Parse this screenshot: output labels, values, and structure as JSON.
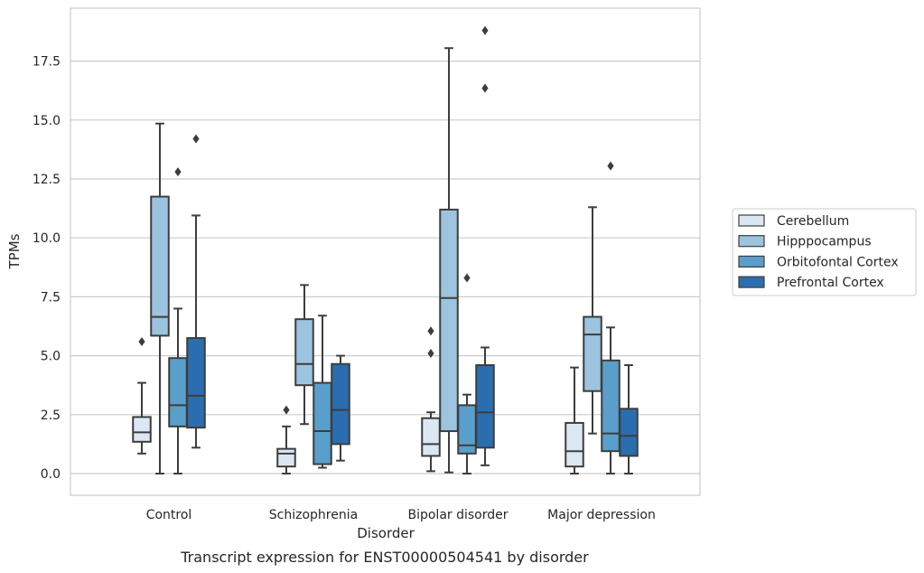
{
  "caption": "Transcript expression for ENST00000504541 by disorder",
  "chart_data": {
    "type": "box",
    "title": "",
    "xlabel": "Disorder",
    "ylabel": "TPMs",
    "ylim": [
      -0.9,
      19.7
    ],
    "yticks": [
      0.0,
      2.5,
      5.0,
      7.5,
      10.0,
      12.5,
      15.0,
      17.5
    ],
    "ytick_labels": [
      "0.0",
      "2.5",
      "5.0",
      "7.5",
      "10.0",
      "12.5",
      "15.0",
      "17.5"
    ],
    "categories": [
      "Control",
      "Schizophrenia",
      "Bipolar disorder",
      "Major depression"
    ],
    "grid": "horizontal",
    "legend_position": "right",
    "series": [
      {
        "name": "Cerebellum",
        "color": "#dbe8f4",
        "boxes": [
          {
            "whisker_low": 0.85,
            "q1": 1.35,
            "median": 1.75,
            "q3": 2.4,
            "whisker_high": 3.85,
            "outliers": [
              5.6
            ]
          },
          {
            "whisker_low": 0.0,
            "q1": 0.3,
            "median": 0.85,
            "q3": 1.05,
            "whisker_high": 2.0,
            "outliers": [
              2.7
            ]
          },
          {
            "whisker_low": 0.1,
            "q1": 0.75,
            "median": 1.25,
            "q3": 2.35,
            "whisker_high": 2.6,
            "outliers": [
              5.1,
              6.05
            ]
          },
          {
            "whisker_low": 0.0,
            "q1": 0.3,
            "median": 0.95,
            "q3": 2.15,
            "whisker_high": 4.5,
            "outliers": []
          }
        ]
      },
      {
        "name": "Hipppocampus",
        "color": "#9cc4de",
        "boxes": [
          {
            "whisker_low": 0.0,
            "q1": 5.85,
            "median": 6.65,
            "q3": 11.75,
            "whisker_high": 14.85,
            "outliers": []
          },
          {
            "whisker_low": 2.1,
            "q1": 3.75,
            "median": 4.65,
            "q3": 6.55,
            "whisker_high": 8.0,
            "outliers": []
          },
          {
            "whisker_low": 0.05,
            "q1": 1.8,
            "median": 7.45,
            "q3": 11.2,
            "whisker_high": 18.05,
            "outliers": []
          },
          {
            "whisker_low": 1.7,
            "q1": 3.5,
            "median": 5.9,
            "q3": 6.65,
            "whisker_high": 11.3,
            "outliers": []
          }
        ]
      },
      {
        "name": "Orbitofontal Cortex",
        "color": "#5a9ecb",
        "boxes": [
          {
            "whisker_low": 0.0,
            "q1": 2.0,
            "median": 2.9,
            "q3": 4.9,
            "whisker_high": 7.0,
            "outliers": [
              12.8
            ]
          },
          {
            "whisker_low": 0.25,
            "q1": 0.4,
            "median": 1.8,
            "q3": 3.85,
            "whisker_high": 6.7,
            "outliers": []
          },
          {
            "whisker_low": 0.0,
            "q1": 0.85,
            "median": 1.2,
            "q3": 2.9,
            "whisker_high": 3.35,
            "outliers": [
              8.3
            ]
          },
          {
            "whisker_low": 0.0,
            "q1": 0.95,
            "median": 1.7,
            "q3": 4.8,
            "whisker_high": 6.2,
            "outliers": [
              13.05
            ]
          }
        ]
      },
      {
        "name": "Prefrontal Cortex",
        "color": "#2b6eaf",
        "boxes": [
          {
            "whisker_low": 1.1,
            "q1": 1.95,
            "median": 3.3,
            "q3": 5.75,
            "whisker_high": 10.95,
            "outliers": [
              14.2
            ]
          },
          {
            "whisker_low": 0.55,
            "q1": 1.25,
            "median": 2.7,
            "q3": 4.65,
            "whisker_high": 5.0,
            "outliers": []
          },
          {
            "whisker_low": 0.35,
            "q1": 1.1,
            "median": 2.6,
            "q3": 4.6,
            "whisker_high": 5.35,
            "outliers": [
              16.35,
              18.8
            ]
          },
          {
            "whisker_low": 0.0,
            "q1": 0.75,
            "median": 1.6,
            "q3": 2.75,
            "whisker_high": 4.6,
            "outliers": []
          }
        ]
      }
    ]
  }
}
